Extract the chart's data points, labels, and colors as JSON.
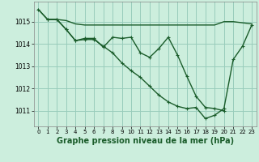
{
  "background_color": "#cceedd",
  "grid_color": "#99ccbb",
  "line_color": "#1a5c2a",
  "xlabel": "Graphe pression niveau de la mer (hPa)",
  "xlabel_fontsize": 7.0,
  "xlim": [
    -0.5,
    23.5
  ],
  "ylim": [
    1010.3,
    1015.9
  ],
  "yticks": [
    1011,
    1012,
    1013,
    1014,
    1015
  ],
  "xticks": [
    0,
    1,
    2,
    3,
    4,
    5,
    6,
    7,
    8,
    9,
    10,
    11,
    12,
    13,
    14,
    15,
    16,
    17,
    18,
    19,
    20,
    21,
    22,
    23
  ],
  "series": [
    {
      "x": [
        0,
        1,
        2,
        3,
        4,
        5,
        6,
        7,
        8,
        9,
        10,
        11,
        12,
        13,
        14,
        15,
        16,
        17,
        18,
        19,
        20,
        21,
        22,
        23
      ],
      "y": [
        1015.55,
        1015.1,
        1015.1,
        1015.05,
        1014.9,
        1014.85,
        1014.85,
        1014.85,
        1014.85,
        1014.85,
        1014.85,
        1014.85,
        1014.85,
        1014.85,
        1014.85,
        1014.85,
        1014.85,
        1014.85,
        1014.85,
        1014.85,
        1015.0,
        1015.0,
        1014.95,
        1014.9
      ],
      "style": "-",
      "marker": null,
      "linewidth": 1.0
    },
    {
      "x": [
        1,
        2,
        3,
        4,
        5,
        6,
        7,
        8,
        9,
        10,
        11,
        12,
        13,
        14,
        15,
        16,
        17,
        18,
        19,
        20
      ],
      "y": [
        1015.1,
        1015.1,
        1014.65,
        1014.15,
        1014.25,
        1014.25,
        1013.85,
        1014.3,
        1014.25,
        1014.3,
        1013.6,
        1013.4,
        1013.8,
        1014.3,
        1013.5,
        1012.55,
        1011.65,
        1011.15,
        1011.1,
        1011.0
      ],
      "style": "-",
      "marker": "+",
      "linewidth": 1.0
    },
    {
      "x": [
        0,
        1,
        2,
        3,
        4,
        5,
        6,
        7,
        8,
        9,
        10,
        11,
        12,
        13,
        14,
        15,
        16,
        17,
        18,
        19,
        20,
        21,
        22,
        23
      ],
      "y": [
        1015.55,
        1015.1,
        1015.1,
        1014.65,
        1014.15,
        1014.2,
        1014.2,
        1013.9,
        1013.6,
        1013.15,
        1012.8,
        1012.5,
        1012.1,
        1011.7,
        1011.4,
        1011.2,
        1011.1,
        1011.15,
        1010.65,
        1010.8,
        1011.1,
        1013.3,
        1013.9,
        1014.85
      ],
      "style": "-",
      "marker": "+",
      "linewidth": 1.0
    }
  ]
}
